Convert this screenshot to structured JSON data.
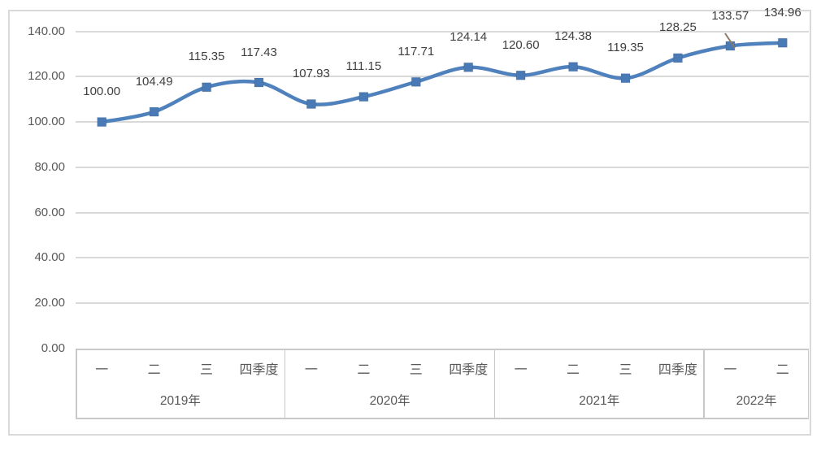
{
  "chart_data": {
    "type": "line",
    "smooth": true,
    "marker": "square",
    "legend_position": "none",
    "grid": "horizontal",
    "title": "",
    "xlabel": "",
    "ylabel": "",
    "ylim": [
      0,
      140
    ],
    "y_tick_step": 20,
    "y_ticks": [
      "0.00",
      "20.00",
      "40.00",
      "60.00",
      "80.00",
      "100.00",
      "120.00",
      "140.00"
    ],
    "series": [
      {
        "name": "",
        "values": [
          100.0,
          104.49,
          115.35,
          117.43,
          107.93,
          111.15,
          117.71,
          124.14,
          120.6,
          124.38,
          119.35,
          128.25,
          133.57,
          134.96
        ]
      }
    ],
    "data_labels": [
      "100.00",
      "104.49",
      "115.35",
      "117.43",
      "107.93",
      "111.15",
      "117.71",
      "124.14",
      "120.60",
      "124.38",
      "119.35",
      "128.25",
      "133.57",
      "134.96"
    ],
    "category_groups": [
      {
        "label": "2019年",
        "quarters": [
          "一",
          "二",
          "三",
          "四季度"
        ]
      },
      {
        "label": "2020年",
        "quarters": [
          "一",
          "二",
          "三",
          "四季度"
        ]
      },
      {
        "label": "2021年",
        "quarters": [
          "一",
          "二",
          "三",
          "四季度"
        ]
      },
      {
        "label": "2022年",
        "quarters": [
          "一",
          "二"
        ]
      }
    ],
    "colors": {
      "line": "#4f81bd",
      "marker_fill": "#4a7ab5",
      "gridline": "#d9d9d9",
      "axis_text": "#595959",
      "data_label_text": "#404040",
      "axis_border": "#c9c9c9",
      "chart_border": "#d9d9d9",
      "cursor_artifact": "#8c7b68"
    }
  }
}
